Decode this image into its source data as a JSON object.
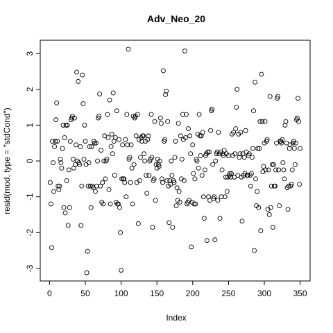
{
  "chart_data": {
    "type": "scatter",
    "title": "Adv_Neo_20",
    "x_label": "Index",
    "y_label": "resid(mod, type = \"stdCond\")",
    "xlim": [
      -12.96,
      363.96
    ],
    "ylim": [
      -3.35,
      3.37
    ],
    "xticks": [
      0,
      50,
      100,
      150,
      200,
      250,
      300,
      350
    ],
    "yticks": [
      -3,
      -2,
      -1,
      0,
      1,
      2,
      3
    ],
    "color": "#000000",
    "x": [
      1,
      2,
      3,
      4,
      5,
      6,
      7,
      8,
      9,
      10,
      11,
      12,
      13,
      14,
      15,
      16,
      17,
      18,
      19,
      20,
      21,
      22,
      23,
      24,
      25,
      26,
      27,
      28,
      29,
      30,
      31,
      32,
      33,
      34,
      35,
      36,
      37,
      38,
      39,
      40,
      41,
      42,
      43,
      44,
      45,
      46,
      47,
      48,
      49,
      50,
      51,
      52,
      53,
      54,
      55,
      56,
      57,
      58,
      59,
      60,
      61,
      62,
      63,
      64,
      65,
      66,
      67,
      68,
      69,
      70,
      71,
      72,
      73,
      74,
      75,
      76,
      77,
      78,
      79,
      80,
      81,
      82,
      83,
      84,
      85,
      86,
      87,
      88,
      89,
      90,
      91,
      92,
      93,
      94,
      95,
      96,
      97,
      98,
      99,
      100,
      101,
      102,
      103,
      104,
      105,
      106,
      107,
      108,
      109,
      110,
      111,
      112,
      113,
      114,
      115,
      116,
      117,
      118,
      119,
      120,
      121,
      122,
      123,
      124,
      125,
      126,
      127,
      128,
      129,
      130,
      131,
      132,
      133,
      134,
      135,
      136,
      137,
      138,
      139,
      140,
      141,
      142,
      143,
      144,
      145,
      146,
      147,
      148,
      149,
      150,
      151,
      152,
      153,
      154,
      155,
      156,
      157,
      158,
      159,
      160,
      161,
      162,
      163,
      164,
      165,
      166,
      167,
      168,
      169,
      170,
      171,
      172,
      173,
      174,
      175,
      176,
      177,
      178,
      179,
      180,
      181,
      182,
      183,
      184,
      185,
      186,
      187,
      188,
      189,
      190,
      191,
      192,
      193,
      194,
      195,
      196,
      197,
      198,
      199,
      200,
      201,
      202,
      203,
      204,
      205,
      206,
      207,
      208,
      209,
      210,
      211,
      212,
      213,
      214,
      215,
      216,
      217,
      218,
      219,
      220,
      221,
      222,
      223,
      224,
      225,
      226,
      227,
      228,
      229,
      230,
      231,
      232,
      233,
      234,
      235,
      236,
      237,
      238,
      239,
      240,
      241,
      242,
      243,
      244,
      245,
      246,
      247,
      248,
      249,
      250,
      251,
      252,
      253,
      254,
      255,
      256,
      257,
      258,
      259,
      260,
      261,
      262,
      263,
      264,
      265,
      266,
      267,
      268,
      269,
      270,
      271,
      272,
      273,
      274,
      275,
      276,
      277,
      278,
      279,
      280,
      281,
      282,
      283,
      284,
      285,
      286,
      287,
      288,
      289,
      290,
      291,
      292,
      293,
      294,
      295,
      296,
      297,
      298,
      299,
      300,
      301,
      302,
      303,
      304,
      305,
      306,
      307,
      308,
      309,
      310,
      311,
      312,
      313,
      314,
      315,
      316,
      317,
      318,
      319,
      320,
      321,
      322,
      323,
      324,
      325,
      326,
      327,
      328,
      329,
      330,
      331,
      332,
      333,
      334,
      335,
      336,
      337,
      338,
      339,
      340,
      341,
      342,
      343,
      344,
      345,
      346,
      347,
      348,
      349,
      350
    ],
    "values": [
      -0.6,
      -1.2,
      -2.42,
      0.55,
      -0.05,
      -0.85,
      0.4,
      0.55,
      1.15,
      1.62,
      0.55,
      -0.7,
      -0.8,
      -0.7,
      0.05,
      -0.05,
      -0.2,
      0.35,
      1.0,
      -1.3,
      0.65,
      -1.45,
      1.0,
      -0.55,
      1.0,
      -1.8,
      -0.25,
      -1.3,
      0.55,
      1.15,
      1.2,
      1.25,
      0.05,
      -0.2,
      1.2,
      -0.1,
      0.45,
      2.48,
      0.0,
      2.22,
      -0.05,
      -0.1,
      0.4,
      -1.8,
      -0.7,
      2.4,
      1.6,
      0.05,
      1.0,
      0.55,
      -0.1,
      -3.12,
      -2.52,
      -0.7,
      -0.05,
      0.4,
      -0.7,
      -1.3,
      0.4,
      -0.7,
      -0.75,
      0.55,
      0.5,
      -0.85,
      0.5,
      -0.7,
      0.0,
      1.2,
      1.25,
      1.87,
      -0.7,
      0.3,
      -1.15,
      -0.6,
      -1.2,
      0.0,
      0.7,
      -0.5,
      0.0,
      0.05,
      1.3,
      0.65,
      -0.8,
      1.7,
      -1.2,
      0.4,
      0.75,
      0.2,
      1.9,
      0.55,
      -0.4,
      0.65,
      -1.15,
      1.4,
      -1.2,
      -1.2,
      0.6,
      -1.3,
      -2.0,
      -3.05,
      -0.5,
      0.45,
      -0.5,
      -0.5,
      -0.6,
      0.6,
      -1.0,
      1.3,
      0.45,
      3.12,
      0.05,
      0.1,
      -0.6,
      0.45,
      -0.2,
      -1.2,
      1.25,
      -0.1,
      1.2,
      1.25,
      0.7,
      -0.6,
      1.3,
      -1.75,
      0.6,
      -0.55,
      0.1,
      0.65,
      0.55,
      0.7,
      0.7,
      0.2,
      0.0,
      0.55,
      -0.4,
      -0.9,
      0.6,
      0.7,
      -0.4,
      0.0,
      0.05,
      1.3,
      0.1,
      -1.85,
      -0.55,
      -0.5,
      1.1,
      -1.1,
      -0.1,
      -0.2,
      0.05,
      -0.1,
      -0.15,
      0.0,
      1.2,
      1.05,
      -0.5,
      -0.6,
      2.52,
      0.55,
      0.6,
      1.85,
      1.95,
      -0.55,
      1.1,
      -0.7,
      -1.72,
      -0.55,
      -0.65,
      0.0,
      -0.4,
      -1.85,
      -0.55,
      -0.6,
      0.1,
      0.55,
      -1.25,
      -0.75,
      -1.1,
      1.05,
      -0.85,
      -1.15,
      0.7,
      -0.5,
      0.05,
      1.3,
      0.6,
      -0.55,
      3.07,
      0.65,
      1.3,
      -1.2,
      -1.15,
      0.9,
      -1.1,
      0.7,
      0.2,
      -2.4,
      -1.15,
      0.45,
      -0.35,
      -1.2,
      -0.5,
      -1.2,
      0.05,
      0.0,
      0.75,
      -0.2,
      1.3,
      0.7,
      0.15,
      0.7,
      -0.4,
      0.8,
      -1.0,
      -1.6,
      -0.25,
      0.15,
      0.2,
      -2.22,
      0.25,
      -1.0,
      0.25,
      -1.1,
      0.85,
      1.4,
      1.45,
      -0.1,
      -1.05,
      -1.0,
      -2.2,
      0.0,
      0.2,
      0.25,
      -1.1,
      0.8,
      0.2,
      -1.6,
      0.25,
      -1.0,
      -0.25,
      0.2,
      0.15,
      0.3,
      -1.0,
      -0.45,
      0.2,
      -0.85,
      -0.45,
      0.15,
      -0.4,
      -0.35,
      -0.45,
      -0.35,
      0.75,
      0.15,
      0.8,
      -0.45,
      0.2,
      0.9,
      1.5,
      2.0,
      -0.4,
      0.75,
      0.1,
      0.2,
      0.8,
      -0.45,
      -1.68,
      0.2,
      -0.4,
      0.1,
      -0.35,
      0.85,
      0.25,
      -0.4,
      -0.4,
      0.15,
      0.2,
      -0.4,
      -0.7,
      -0.35,
      0.1,
      0.35,
      1.4,
      -2.5,
      2.2,
      -0.5,
      -1.25,
      -0.85,
      0.35,
      -1.3,
      0.35,
      1.1,
      -1.95,
      2.42,
      1.1,
      -0.3,
      -0.15,
      0.5,
      1.1,
      -0.25,
      0.55,
      0.6,
      -1.35,
      -0.25,
      -1.5,
      1.8,
      -1.3,
      -0.7,
      -0.1,
      -1.85,
      -0.1,
      -0.7,
      -0.7,
      -0.25,
      0.5,
      1.75,
      1.8,
      -0.25,
      -1.25,
      0.55,
      0.55,
      0.5,
      0.6,
      -0.05,
      -0.25,
      -0.5,
      1.0,
      1.1,
      0.5,
      -0.75,
      -1.35,
      -0.7,
      0.35,
      0.45,
      -0.7,
      -0.65,
      -0.25,
      0.5,
      0.55,
      0.35,
      -0.1,
      0.5,
      1.15,
      1.2,
      1.75,
      1.1,
      -0.65,
      0.35
    ]
  }
}
